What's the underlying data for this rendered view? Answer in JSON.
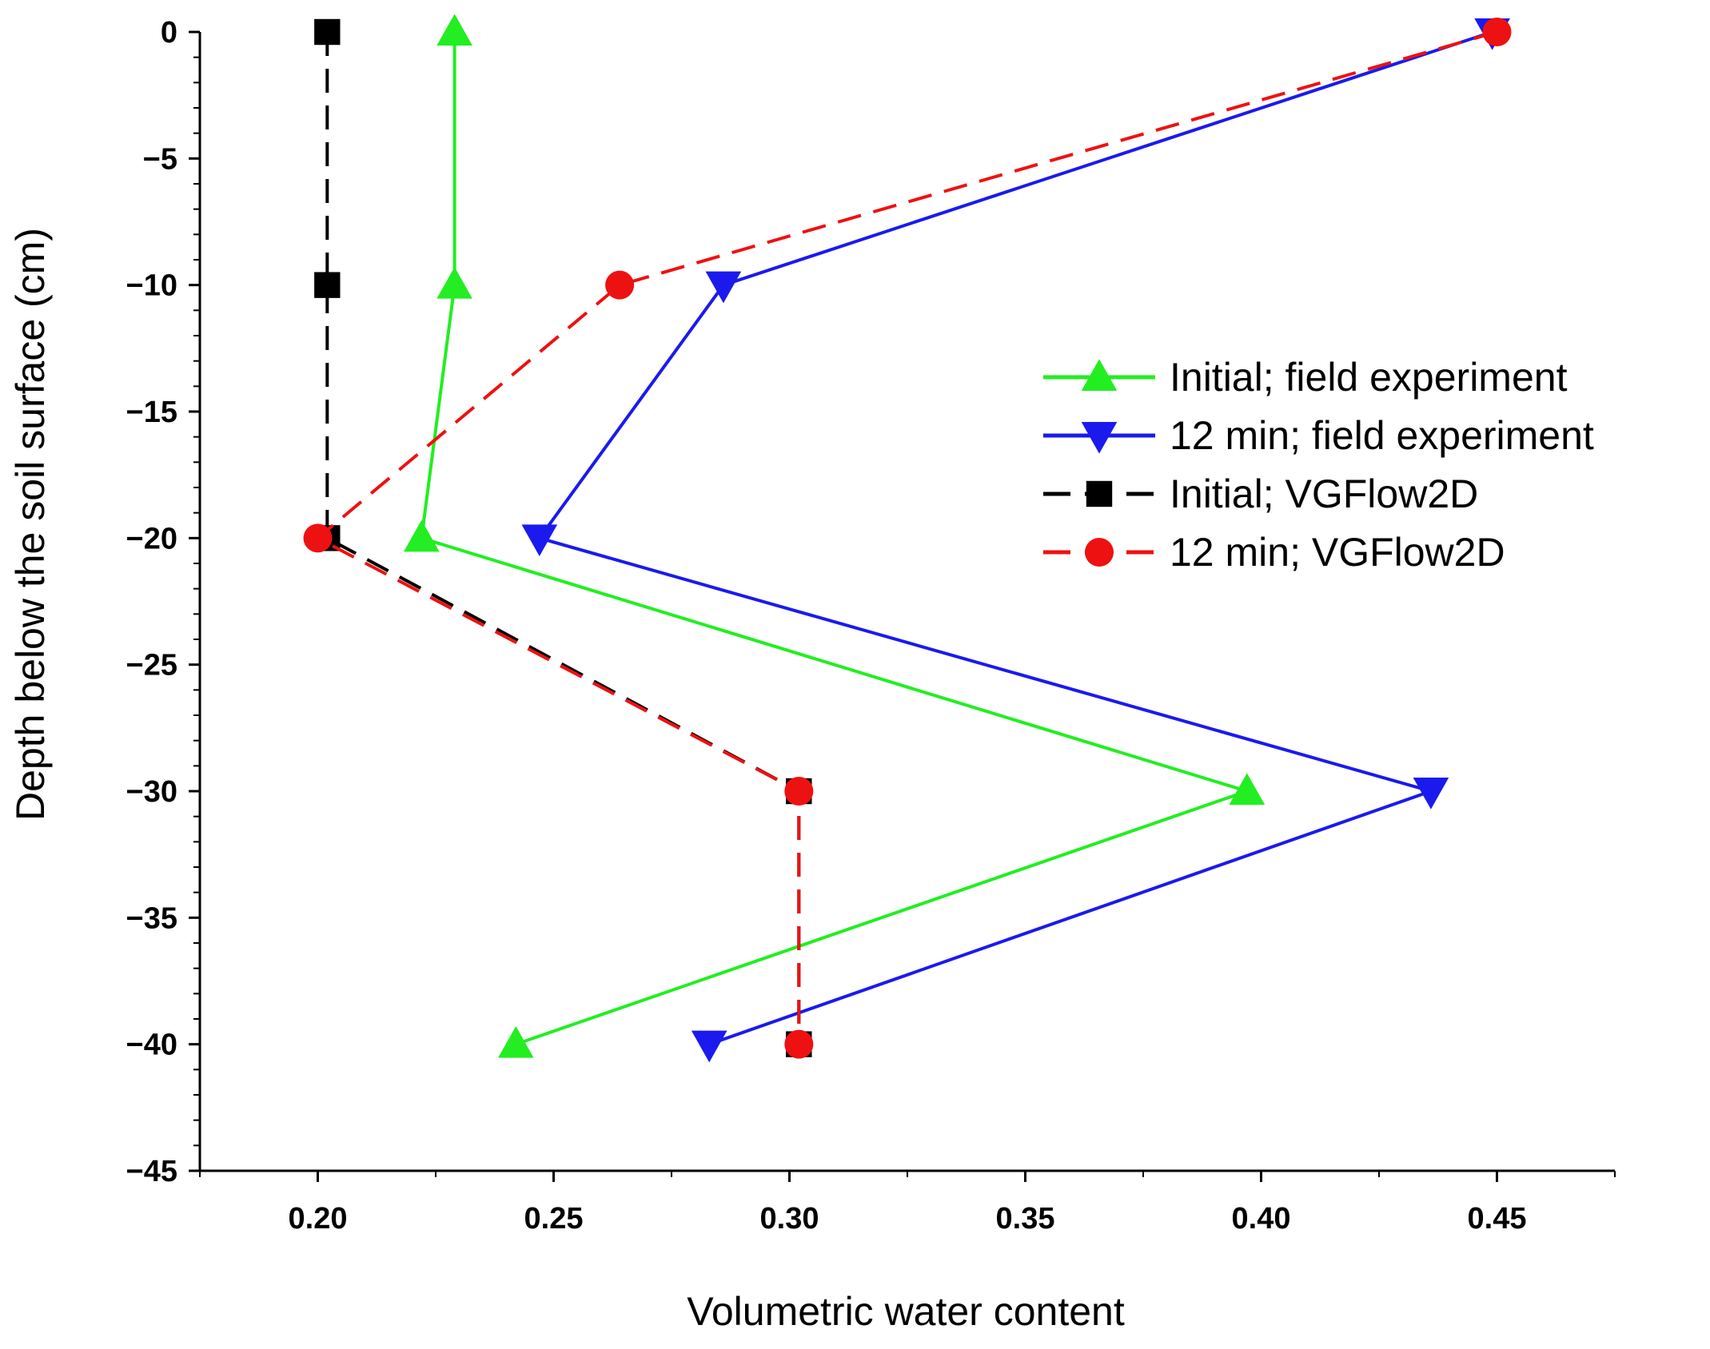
{
  "chart_data": {
    "type": "line",
    "xlabel": "Volumetric water content",
    "ylabel": "Depth below the soil surface (cm)",
    "xlim": [
      0.175,
      0.475
    ],
    "ylim": [
      -45,
      0
    ],
    "x_ticks": [
      0.2,
      0.25,
      0.3,
      0.35,
      0.4,
      0.45
    ],
    "x_tick_labels": [
      "0.20",
      "0.25",
      "0.30",
      "0.35",
      "0.40",
      "0.45"
    ],
    "y_ticks": [
      0,
      -5,
      -10,
      -15,
      -20,
      -25,
      -30,
      -35,
      -40,
      -45
    ],
    "y_tick_labels": [
      "0",
      "−5",
      "−10",
      "−15",
      "−20",
      "−25",
      "−30",
      "−35",
      "−40",
      "−45"
    ],
    "grid": false,
    "legend_position": "right, upper-middle",
    "series": [
      {
        "name": "Initial; field experiment",
        "color": "#22ee22",
        "marker": "triangle-up",
        "line_style": "solid",
        "x": [
          0.229,
          0.229,
          0.222,
          0.397,
          0.242
        ],
        "y": [
          0,
          -10,
          -20,
          -30,
          -40
        ]
      },
      {
        "name": "12 min; field experiment",
        "color": "#1a1aee",
        "marker": "triangle-down",
        "line_style": "solid",
        "x": [
          0.449,
          0.286,
          0.247,
          0.436,
          0.283
        ],
        "y": [
          0,
          -10,
          -20,
          -30,
          -40
        ]
      },
      {
        "name": "Initial; VGFlow2D",
        "color": "#000000",
        "marker": "square",
        "line_style": "dashed",
        "x": [
          0.202,
          0.202,
          0.202,
          0.302,
          0.302
        ],
        "y": [
          0,
          -10,
          -20,
          -30,
          -40
        ]
      },
      {
        "name": "12 min; VGFlow2D",
        "color": "#ee1111",
        "marker": "circle",
        "line_style": "dashed",
        "x": [
          0.45,
          0.264,
          0.2,
          0.302,
          0.302
        ],
        "y": [
          0,
          -10,
          -20,
          -30,
          -40
        ]
      }
    ]
  }
}
